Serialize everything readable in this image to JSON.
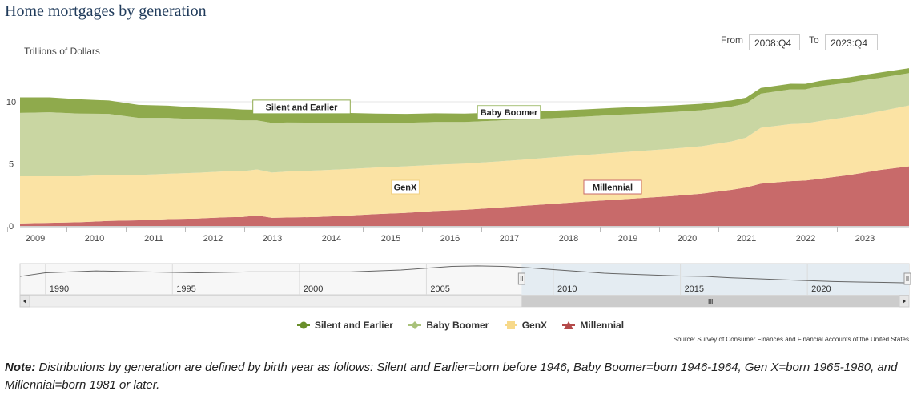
{
  "title": "Home mortgages by generation",
  "range": {
    "from_label": "From",
    "from_value": "2008:Q4",
    "to_label": "To",
    "to_value": "2023:Q4"
  },
  "chart_data": {
    "type": "area",
    "stacked": true,
    "title": "Home mortgages by generation",
    "ylabel": "Trillions of Dollars",
    "ylim": [
      0,
      12.9
    ],
    "yticks": [
      0,
      5,
      10
    ],
    "xticks": [
      "2009",
      "2010",
      "2011",
      "2012",
      "2013",
      "2014",
      "2015",
      "2016",
      "2017",
      "2018",
      "2019",
      "2020",
      "2021",
      "2022",
      "2023"
    ],
    "x": [
      2008.75,
      2009.25,
      2009.75,
      2010.25,
      2010.75,
      2011.25,
      2011.75,
      2012.25,
      2012.5,
      2012.75,
      2013,
      2013.25,
      2013.75,
      2014.25,
      2014.75,
      2015.25,
      2015.75,
      2016.25,
      2016.75,
      2017.25,
      2017.75,
      2018.25,
      2018.75,
      2019.25,
      2019.75,
      2020.25,
      2020.75,
      2021,
      2021.25,
      2021.75,
      2022,
      2022.25,
      2022.75,
      2023,
      2023.25,
      2023.75
    ],
    "series": [
      {
        "name": "Millennial",
        "color": "#c86a6a",
        "values": [
          0.2,
          0.25,
          0.3,
          0.4,
          0.45,
          0.55,
          0.6,
          0.7,
          0.72,
          0.85,
          0.65,
          0.68,
          0.72,
          0.82,
          0.95,
          1.05,
          1.2,
          1.3,
          1.45,
          1.62,
          1.78,
          1.95,
          2.1,
          2.25,
          2.4,
          2.6,
          2.9,
          3.1,
          3.4,
          3.6,
          3.65,
          3.8,
          4.1,
          4.3,
          4.5,
          4.8
        ]
      },
      {
        "name": "GenX",
        "color": "#fbe3a4",
        "values": [
          3.8,
          3.75,
          3.7,
          3.72,
          3.65,
          3.65,
          3.68,
          3.7,
          3.68,
          3.7,
          3.65,
          3.7,
          3.75,
          3.75,
          3.75,
          3.75,
          3.72,
          3.72,
          3.72,
          3.72,
          3.75,
          3.75,
          3.78,
          3.8,
          3.82,
          3.82,
          3.9,
          4.0,
          4.5,
          4.6,
          4.6,
          4.65,
          4.7,
          4.7,
          4.72,
          4.9
        ]
      },
      {
        "name": "Baby Boomer",
        "color": "#c9d6a2",
        "values": [
          5.1,
          5.15,
          5.05,
          4.9,
          4.6,
          4.5,
          4.3,
          4.15,
          4.1,
          3.95,
          4.0,
          3.95,
          3.85,
          3.75,
          3.6,
          3.5,
          3.45,
          3.35,
          3.3,
          3.25,
          3.15,
          3.1,
          3.05,
          3.0,
          2.95,
          2.9,
          2.8,
          2.75,
          2.75,
          2.8,
          2.75,
          2.8,
          2.75,
          2.75,
          2.7,
          2.6
        ]
      },
      {
        "name": "Silent and Earlier",
        "color": "#8faa4c",
        "values": [
          1.25,
          1.2,
          1.15,
          1.08,
          1.05,
          0.98,
          0.95,
          0.9,
          0.88,
          0.85,
          0.85,
          0.82,
          0.8,
          0.78,
          0.75,
          0.72,
          0.7,
          0.68,
          0.65,
          0.62,
          0.6,
          0.58,
          0.57,
          0.55,
          0.53,
          0.52,
          0.5,
          0.48,
          0.46,
          0.45,
          0.44,
          0.43,
          0.42,
          0.42,
          0.42,
          0.4
        ]
      }
    ],
    "annotations": [
      {
        "text": "Silent and Earlier",
        "x": 2013.5
      },
      {
        "text": "Baby Boomer",
        "x": 2017
      },
      {
        "text": "GenX",
        "x": 2015.25
      },
      {
        "text": "Millennial",
        "x": 2018.75
      }
    ],
    "navigator": {
      "ticks": [
        "1990",
        "1995",
        "2000",
        "2005",
        "2010",
        "2015",
        "2020"
      ],
      "xlim": [
        1989,
        2024
      ],
      "selected": [
        2008.75,
        2024
      ],
      "x": [
        1989,
        1990,
        1992,
        1994,
        1996,
        1998,
        2000,
        2002,
        2004,
        2005,
        2006,
        2007,
        2008,
        2009,
        2010,
        2011,
        2012,
        2013,
        2014,
        2015,
        2016,
        2017,
        2018,
        2019,
        2020,
        2021,
        2022,
        2023,
        2024
      ],
      "values": [
        2.0,
        2.4,
        2.6,
        2.5,
        2.4,
        2.5,
        2.5,
        2.5,
        2.7,
        2.9,
        3.1,
        3.15,
        3.1,
        2.95,
        2.75,
        2.55,
        2.35,
        2.25,
        2.15,
        2.05,
        2.0,
        1.85,
        1.75,
        1.65,
        1.55,
        1.45,
        1.4,
        1.35,
        1.3
      ]
    }
  },
  "legend": [
    {
      "label": "Silent and Earlier",
      "color": "#6a8f2b",
      "marker": "circle"
    },
    {
      "label": "Baby Boomer",
      "color": "#a9c27a",
      "marker": "diamond"
    },
    {
      "label": "GenX",
      "color": "#f7d98a",
      "marker": "square"
    },
    {
      "label": "Millennial",
      "color": "#b44a4a",
      "marker": "triangle"
    }
  ],
  "source": "Source: Survey of Consumer Finances and Financial Accounts of the United States",
  "note": {
    "label": "Note:",
    "text": "Distributions by generation are defined by birth year as follows: Silent and Earlier=born before 1946, Baby Boomer=born 1946-1964, Gen X=born 1965-1980, and Millennial=born 1981 or later."
  }
}
